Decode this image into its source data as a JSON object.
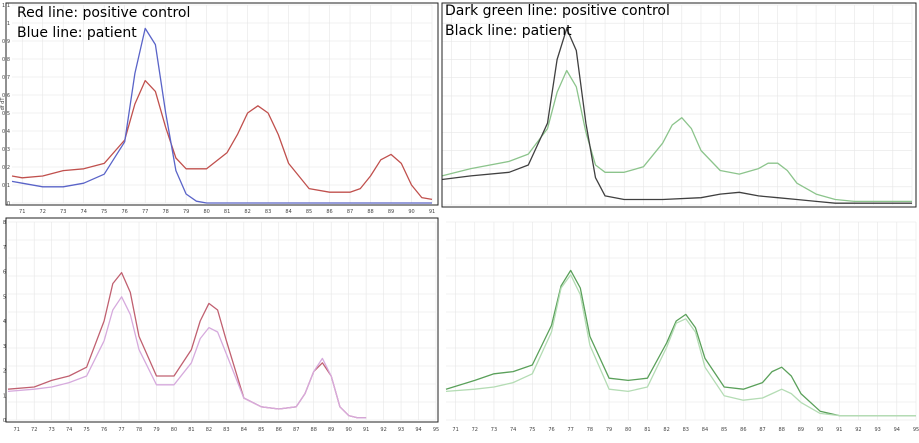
{
  "chart_data": [
    {
      "type": "line",
      "legend_lines": [
        "Red line: positive control",
        "Blue line: patient"
      ],
      "ylabel": "df dT",
      "xlim": [
        70.5,
        91
      ],
      "ylim": [
        0,
        1.1
      ],
      "xticks": [
        "71",
        "72",
        "73",
        "74",
        "75",
        "76",
        "77",
        "78",
        "79",
        "80",
        "81",
        "82",
        "83",
        "84",
        "85",
        "86",
        "87",
        "88",
        "89",
        "90",
        "91"
      ],
      "yticks": [
        "0",
        "0.1",
        "0.2",
        "0.3",
        "0.4",
        "0.5",
        "0.6",
        "0.7",
        "0.8",
        "0.9",
        "1",
        "1.1"
      ],
      "grid": true,
      "series": [
        {
          "color": "#c0504d",
          "x": [
            70.5,
            71,
            72,
            73,
            74,
            75,
            76,
            76.5,
            77,
            77.5,
            78,
            78.5,
            79,
            80,
            81,
            81.5,
            82,
            82.5,
            83,
            83.5,
            84,
            85,
            86,
            87,
            87.5,
            88,
            88.5,
            89,
            89.5,
            90,
            90.5,
            91
          ],
          "y": [
            0.15,
            0.14,
            0.15,
            0.18,
            0.19,
            0.22,
            0.35,
            0.55,
            0.68,
            0.62,
            0.42,
            0.25,
            0.19,
            0.19,
            0.28,
            0.38,
            0.5,
            0.54,
            0.5,
            0.38,
            0.22,
            0.08,
            0.06,
            0.06,
            0.08,
            0.15,
            0.24,
            0.27,
            0.22,
            0.1,
            0.03,
            0.02
          ]
        },
        {
          "color": "#5a64c8",
          "x": [
            70.5,
            71,
            72,
            73,
            74,
            75,
            76,
            76.5,
            77,
            77.5,
            78,
            78.5,
            79,
            79.5,
            80,
            81,
            83,
            85,
            87,
            89,
            91
          ],
          "y": [
            0.12,
            0.11,
            0.09,
            0.09,
            0.11,
            0.16,
            0.34,
            0.72,
            0.97,
            0.88,
            0.5,
            0.18,
            0.05,
            0.01,
            0,
            0,
            0,
            0,
            0,
            0,
            0
          ]
        }
      ]
    },
    {
      "type": "line",
      "legend_lines": [
        "Dark green line: positive control",
        "Black line: patient"
      ],
      "xlim": [
        70.5,
        95
      ],
      "ylim": [
        0,
        1.1
      ],
      "grid": true,
      "series": [
        {
          "color": "#8cc48c",
          "x": [
            70.5,
            72,
            74,
            75,
            76,
            76.5,
            77,
            77.5,
            78,
            78.5,
            79,
            80,
            81,
            82,
            82.5,
            83,
            83.5,
            84,
            85,
            86,
            87,
            87.5,
            88,
            88.5,
            89,
            90,
            91,
            92,
            95
          ],
          "y": [
            0.16,
            0.2,
            0.24,
            0.28,
            0.42,
            0.62,
            0.74,
            0.65,
            0.4,
            0.22,
            0.18,
            0.18,
            0.21,
            0.34,
            0.44,
            0.48,
            0.42,
            0.3,
            0.19,
            0.17,
            0.2,
            0.23,
            0.23,
            0.19,
            0.12,
            0.06,
            0.03,
            0.02,
            0.02
          ]
        },
        {
          "color": "#404040",
          "x": [
            70.5,
            72,
            74,
            75,
            76,
            76.5,
            77,
            77.5,
            78,
            78.5,
            79,
            80,
            82,
            84,
            85,
            86,
            87,
            88,
            89,
            90,
            91,
            93,
            95
          ],
          "y": [
            0.14,
            0.16,
            0.18,
            0.22,
            0.45,
            0.8,
            0.97,
            0.85,
            0.45,
            0.15,
            0.05,
            0.03,
            0.03,
            0.04,
            0.06,
            0.07,
            0.05,
            0.04,
            0.03,
            0.02,
            0.01,
            0.01,
            0.01
          ]
        }
      ]
    },
    {
      "type": "line",
      "xlim": [
        70.5,
        95
      ],
      "ylim": [
        0,
        0.9
      ],
      "xticks": [
        "71",
        "72",
        "73",
        "74",
        "75",
        "76",
        "77",
        "78",
        "79",
        "80",
        "81",
        "82",
        "83",
        "84",
        "85",
        "86",
        "87",
        "88",
        "89",
        "90",
        "91",
        "92",
        "93",
        "94",
        "95"
      ],
      "yticks": [
        "0",
        "1",
        "2",
        "3",
        "4",
        "5",
        "6",
        "7",
        "8"
      ],
      "grid": true,
      "series": [
        {
          "color": "#c06070",
          "x": [
            70.5,
            72,
            73,
            74,
            75,
            76,
            76.5,
            77,
            77.5,
            78,
            79,
            80,
            81,
            81.5,
            82,
            82.5,
            83,
            84,
            85,
            86,
            87,
            87.5,
            88,
            88.5,
            89,
            89.5,
            90,
            90.5,
            91
          ],
          "y": [
            0.14,
            0.15,
            0.18,
            0.2,
            0.24,
            0.45,
            0.62,
            0.67,
            0.58,
            0.38,
            0.2,
            0.2,
            0.32,
            0.45,
            0.53,
            0.5,
            0.36,
            0.1,
            0.06,
            0.05,
            0.06,
            0.12,
            0.22,
            0.26,
            0.2,
            0.06,
            0.02,
            0.01,
            0.01
          ]
        },
        {
          "color": "#d6aadd",
          "x": [
            70.5,
            72,
            73,
            74,
            75,
            76,
            76.5,
            77,
            77.5,
            78,
            79,
            80,
            81,
            81.5,
            82,
            82.5,
            83,
            84,
            85,
            86,
            87,
            87.5,
            88,
            88.5,
            89,
            89.5,
            90,
            90.5,
            91
          ],
          "y": [
            0.13,
            0.14,
            0.15,
            0.17,
            0.2,
            0.36,
            0.5,
            0.56,
            0.48,
            0.32,
            0.16,
            0.16,
            0.26,
            0.37,
            0.42,
            0.4,
            0.3,
            0.1,
            0.06,
            0.05,
            0.06,
            0.12,
            0.22,
            0.28,
            0.2,
            0.06,
            0.02,
            0.01,
            0.01
          ]
        }
      ]
    },
    {
      "type": "line",
      "xlim": [
        70.5,
        95
      ],
      "ylim": [
        0,
        0.9
      ],
      "xticks": [
        "71",
        "72",
        "73",
        "74",
        "75",
        "76",
        "77",
        "78",
        "79",
        "80",
        "81",
        "82",
        "83",
        "84",
        "85",
        "86",
        "87",
        "88",
        "89",
        "90",
        "91",
        "92",
        "93",
        "94",
        "95"
      ],
      "grid": true,
      "series": [
        {
          "color": "#5aa05a",
          "x": [
            70.5,
            72,
            73,
            74,
            75,
            76,
            76.5,
            77,
            77.5,
            78,
            79,
            80,
            81,
            82,
            82.5,
            83,
            83.5,
            84,
            85,
            86,
            87,
            87.5,
            88,
            88.5,
            89,
            90,
            91,
            92,
            93,
            95
          ],
          "y": [
            0.14,
            0.18,
            0.21,
            0.22,
            0.25,
            0.43,
            0.61,
            0.68,
            0.6,
            0.38,
            0.19,
            0.18,
            0.19,
            0.35,
            0.45,
            0.48,
            0.42,
            0.28,
            0.15,
            0.14,
            0.17,
            0.22,
            0.24,
            0.2,
            0.12,
            0.04,
            0.02,
            0.02,
            0.02,
            0.02
          ]
        },
        {
          "color": "#b4dcb4",
          "x": [
            70.5,
            72,
            73,
            74,
            75,
            76,
            76.5,
            77,
            77.5,
            78,
            79,
            80,
            81,
            82,
            82.5,
            83,
            83.5,
            84,
            85,
            86,
            87,
            87.5,
            88,
            88.5,
            89,
            90,
            91,
            92,
            93,
            95
          ],
          "y": [
            0.13,
            0.14,
            0.15,
            0.17,
            0.21,
            0.4,
            0.6,
            0.66,
            0.57,
            0.34,
            0.14,
            0.13,
            0.15,
            0.33,
            0.44,
            0.46,
            0.4,
            0.24,
            0.11,
            0.09,
            0.1,
            0.12,
            0.14,
            0.12,
            0.08,
            0.03,
            0.02,
            0.02,
            0.02,
            0.02
          ]
        }
      ]
    }
  ]
}
